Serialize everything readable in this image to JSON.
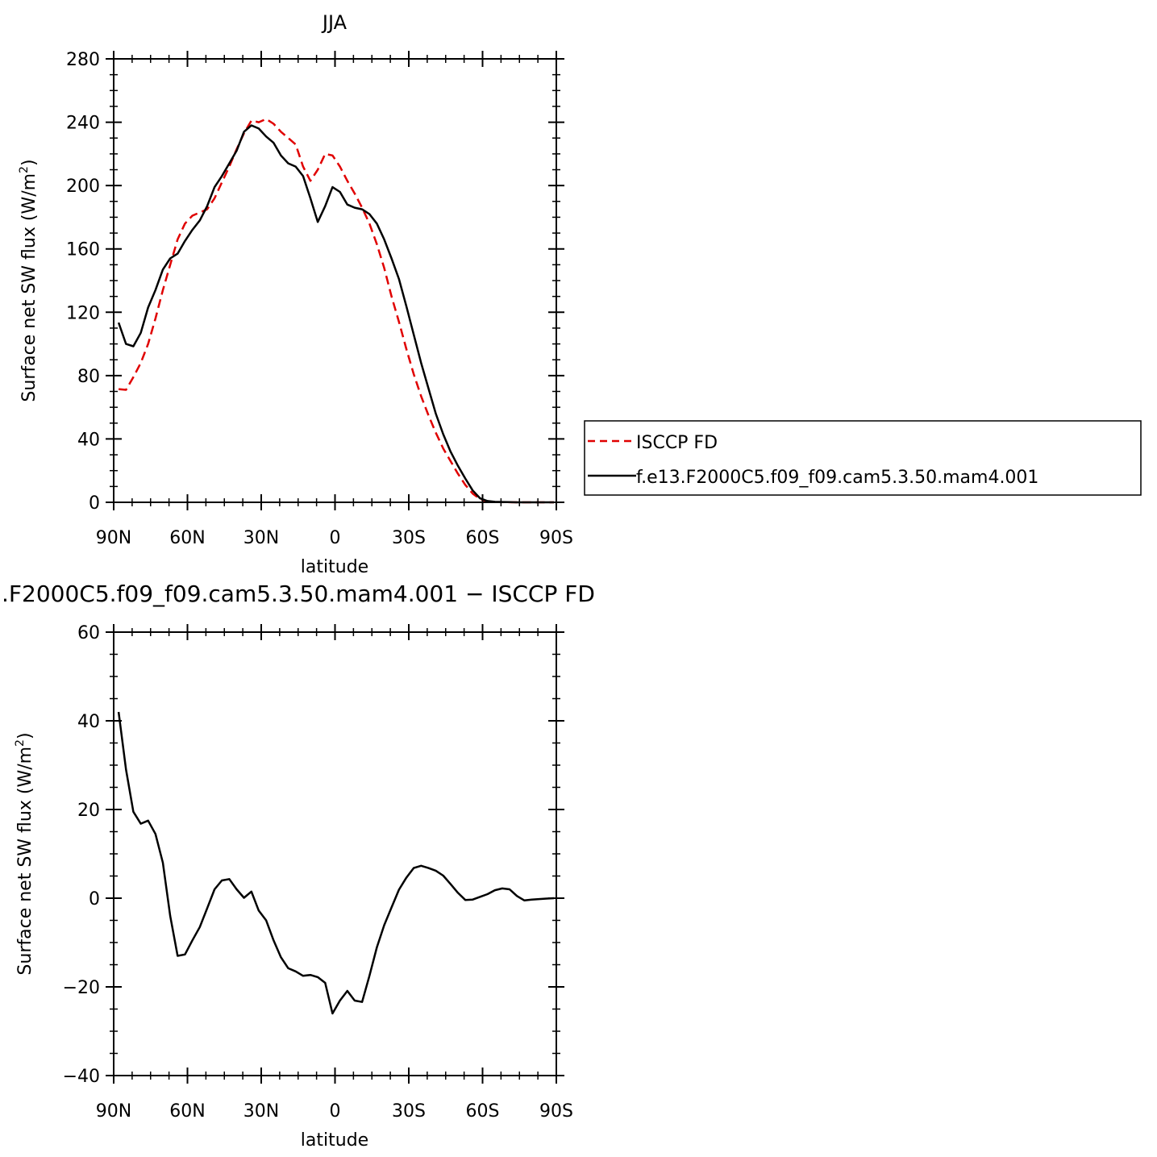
{
  "chart_data": [
    {
      "type": "line",
      "title": "JJA",
      "xlabel": "latitude",
      "ylabel": "Surface net SW flux (W/m",
      "ylabel_sup": "2",
      "ylabel_close": ")",
      "xlim": [
        -90,
        90
      ],
      "ylim": [
        0,
        280
      ],
      "xticks": [
        {
          "value": -90,
          "label": "90N"
        },
        {
          "value": -60,
          "label": "60N"
        },
        {
          "value": -30,
          "label": "30N"
        },
        {
          "value": 0,
          "label": "0"
        },
        {
          "value": 30,
          "label": "30S"
        },
        {
          "value": 60,
          "label": "60S"
        },
        {
          "value": 90,
          "label": "90S"
        }
      ],
      "yticks": [
        {
          "value": 0,
          "label": "0"
        },
        {
          "value": 40,
          "label": "40"
        },
        {
          "value": 80,
          "label": "80"
        },
        {
          "value": 120,
          "label": "120"
        },
        {
          "value": 160,
          "label": "160"
        },
        {
          "value": 200,
          "label": "200"
        },
        {
          "value": 240,
          "label": "240"
        },
        {
          "value": 280,
          "label": "280"
        }
      ],
      "legend_position": "right",
      "series": [
        {
          "name": "ISCCP FD",
          "color": "#e00000",
          "dash": true,
          "x": [
            -88,
            -85,
            -82,
            -79,
            -76,
            -73,
            -70,
            -67,
            -64,
            -61,
            -58,
            -55,
            -52,
            -49,
            -46,
            -43,
            -40,
            -37,
            -34,
            -31,
            -28,
            -25,
            -22,
            -19,
            -16,
            -13,
            -10,
            -7,
            -4,
            -1,
            2,
            5,
            8,
            11,
            14,
            17,
            20,
            23,
            26,
            29,
            32,
            35,
            38,
            41,
            44,
            47,
            50,
            53,
            56,
            59,
            62,
            65,
            68,
            71,
            74,
            77,
            80,
            83,
            86,
            89
          ],
          "y": [
            71.5,
            71,
            79,
            88,
            100,
            116,
            134,
            150,
            166,
            176,
            181,
            183,
            185,
            192,
            202,
            212,
            223,
            233,
            241,
            240,
            242,
            239,
            234,
            230,
            226,
            212,
            203,
            210,
            220,
            219,
            212,
            203,
            195,
            186,
            176,
            163,
            148,
            130,
            114,
            97,
            81,
            67,
            55,
            44,
            34,
            26,
            18,
            11,
            5.5,
            2,
            0.5,
            0.2,
            0.1,
            0.05,
            0,
            0,
            0,
            0,
            0,
            0
          ]
        },
        {
          "name": "f.e13.F2000C5.f09_f09.cam5.3.50.mam4.001",
          "color": "#000000",
          "dash": false,
          "x": [
            -88,
            -85,
            -82,
            -79,
            -76,
            -73,
            -70,
            -67,
            -64,
            -61,
            -58,
            -55,
            -52,
            -49,
            -46,
            -43,
            -40,
            -37,
            -34,
            -31,
            -28,
            -25,
            -22,
            -19,
            -16,
            -13,
            -10,
            -7,
            -4,
            -1,
            2,
            5,
            8,
            11,
            14,
            17,
            20,
            23,
            26,
            29,
            32,
            35,
            38,
            41,
            44,
            47,
            50,
            53,
            56,
            59,
            62,
            65,
            68,
            71,
            74,
            77,
            80,
            83,
            86,
            89
          ],
          "y": [
            113.5,
            100,
            98.5,
            107,
            123,
            134,
            147,
            154,
            157,
            165,
            172,
            178,
            187,
            199,
            206,
            214,
            222,
            234,
            238,
            236,
            231,
            227,
            219,
            214,
            212,
            206,
            192,
            177,
            187,
            199,
            196,
            188,
            186,
            185,
            182,
            176,
            166,
            154,
            141,
            124,
            106,
            88,
            72,
            56,
            43,
            32,
            23,
            15,
            7.5,
            2.5,
            0.8,
            0.3,
            0.2,
            0.1,
            0,
            0,
            0,
            0,
            0,
            0
          ]
        }
      ]
    },
    {
      "type": "line",
      "title": ".F2000C5.f09_f09.cam5.3.50.mam4.001 − ISCCP FD",
      "xlabel": "latitude",
      "ylabel": "Surface net SW flux (W/m",
      "ylabel_sup": "2",
      "ylabel_close": ")",
      "xlim": [
        -90,
        90
      ],
      "ylim": [
        -40,
        60
      ],
      "xticks": [
        {
          "value": -90,
          "label": "90N"
        },
        {
          "value": -60,
          "label": "60N"
        },
        {
          "value": -30,
          "label": "30N"
        },
        {
          "value": 0,
          "label": "0"
        },
        {
          "value": 30,
          "label": "30S"
        },
        {
          "value": 60,
          "label": "60S"
        },
        {
          "value": 90,
          "label": "90S"
        }
      ],
      "yticks": [
        {
          "value": -40,
          "label": "−40"
        },
        {
          "value": -20,
          "label": "−20"
        },
        {
          "value": 0,
          "label": "0"
        },
        {
          "value": 20,
          "label": "20"
        },
        {
          "value": 40,
          "label": "40"
        },
        {
          "value": 60,
          "label": "60"
        }
      ],
      "series": [
        {
          "color": "#000000",
          "dash": false,
          "x": [
            -88,
            -85,
            -82,
            -79,
            -76,
            -73,
            -70,
            -67,
            -64,
            -61,
            -58,
            -55,
            -52,
            -49,
            -46,
            -43,
            -40,
            -37,
            -34,
            -31,
            -28,
            -25,
            -22,
            -19,
            -16,
            -13,
            -10,
            -7,
            -4,
            -1,
            2,
            5,
            8,
            11,
            14,
            17,
            20,
            23,
            26,
            29,
            32,
            35,
            38,
            41,
            44,
            47,
            50,
            53,
            56,
            59,
            62,
            65,
            68,
            71,
            74,
            77,
            80,
            83,
            86,
            89
          ],
          "y": [
            42,
            29,
            19.5,
            16.8,
            17.5,
            14.5,
            8,
            -4,
            -13,
            -12.7,
            -9.5,
            -6.5,
            -2.3,
            2,
            4,
            4.3,
            2,
            0.1,
            1.5,
            -2.8,
            -5,
            -9.5,
            -13.3,
            -15.8,
            -16.5,
            -17.5,
            -17.3,
            -17.8,
            -19.1,
            -26,
            -23.1,
            -20.9,
            -23.1,
            -23.4,
            -17.5,
            -11.1,
            -6.1,
            -2.1,
            1.9,
            4.6,
            6.8,
            7.3,
            6.8,
            6.2,
            5.1,
            3.2,
            1.2,
            -0.4,
            -0.3,
            0.3,
            0.9,
            1.8,
            2.2,
            2,
            0.5,
            -0.5,
            -0.3,
            -0.2,
            -0.1,
            0
          ]
        }
      ]
    }
  ]
}
